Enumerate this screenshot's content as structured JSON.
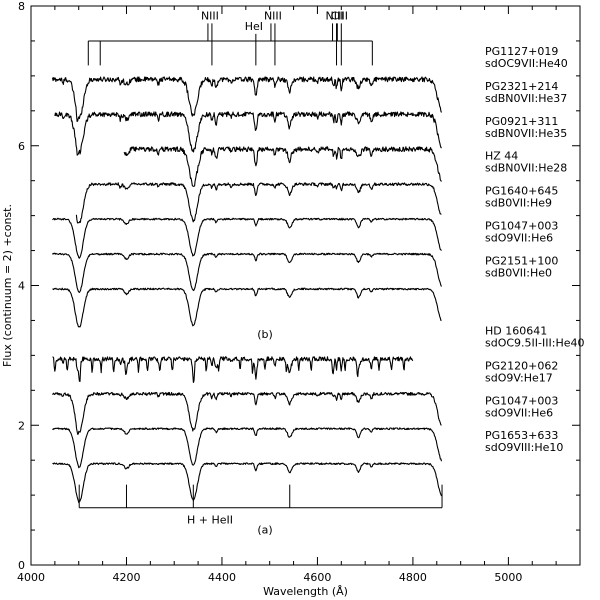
{
  "chart_data": {
    "type": "line",
    "title": "",
    "xlabel": "Wavelength (Å)",
    "ylabel": "Flux (continuum = 2)  +const.",
    "xlim": [
      4000,
      5150
    ],
    "ylim": [
      0,
      8
    ],
    "xticks": [
      "4000",
      "4200",
      "4400",
      "4600",
      "4800",
      "5000"
    ],
    "yticks": [
      "0",
      "2",
      "4",
      "6",
      "8"
    ],
    "grid": false,
    "panels": [
      {
        "label": "(b)",
        "series": [
          {
            "name": "PG1127+019",
            "class": "sdOC9VII:He40",
            "offset": 6.95,
            "x_range": [
              4045,
              4860
            ],
            "style": "heavy"
          },
          {
            "name": "PG2321+214",
            "class": "sdBN0VII:He37",
            "offset": 6.45,
            "x_range": [
              4050,
              4860
            ],
            "style": "heavy"
          },
          {
            "name": "PG0921+311",
            "class": "sdBN0VII:He35",
            "offset": 5.95,
            "x_range": [
              4195,
              4860
            ],
            "style": "heavy"
          },
          {
            "name": "HZ 44",
            "class": "sdBN0VII:He28",
            "offset": 5.45,
            "x_range": [
              4095,
              4860
            ],
            "style": "medium"
          },
          {
            "name": "PG1640+645",
            "class": "sdB0VII:He9",
            "offset": 4.95,
            "x_range": [
              4045,
              4860
            ],
            "style": "light"
          },
          {
            "name": "PG1047+003",
            "class": "sdO9VII:He6",
            "offset": 4.45,
            "x_range": [
              4045,
              4860
            ],
            "style": "light"
          },
          {
            "name": "PG2151+100",
            "class": "sdB0VII:He0",
            "offset": 3.95,
            "x_range": [
              4045,
              4860
            ],
            "style": "light"
          }
        ]
      },
      {
        "label": "(a)",
        "series": [
          {
            "name": "HD 160641",
            "class": "sdOC9.5II-III:He40",
            "offset": 2.95,
            "x_range": [
              4045,
              4800
            ],
            "style": "narrow"
          },
          {
            "name": "PG2120+062",
            "class": "sdO9V:He17",
            "offset": 2.45,
            "x_range": [
              4045,
              4860
            ],
            "style": "medium"
          },
          {
            "name": "PG1047+003",
            "class": "sdO9VII:He6",
            "offset": 1.95,
            "x_range": [
              4045,
              4860
            ],
            "style": "light"
          },
          {
            "name": "PG1653+633",
            "class": "sdO9VIII:He10",
            "offset": 1.45,
            "x_range": [
              4045,
              4860
            ],
            "style": "light"
          }
        ]
      }
    ],
    "line_ids": [
      {
        "label": "NIII",
        "x": 4379
      },
      {
        "label": "HeI",
        "x": 4471
      },
      {
        "label": "NIII",
        "x": 4511
      },
      {
        "label": "NIII",
        "x": 4640
      },
      {
        "label": "CIII",
        "x": 4650
      }
    ],
    "h_heii_label": "H + HeII",
    "h_heii_lines": [
      4101,
      4200,
      4340,
      4542,
      4861
    ]
  }
}
